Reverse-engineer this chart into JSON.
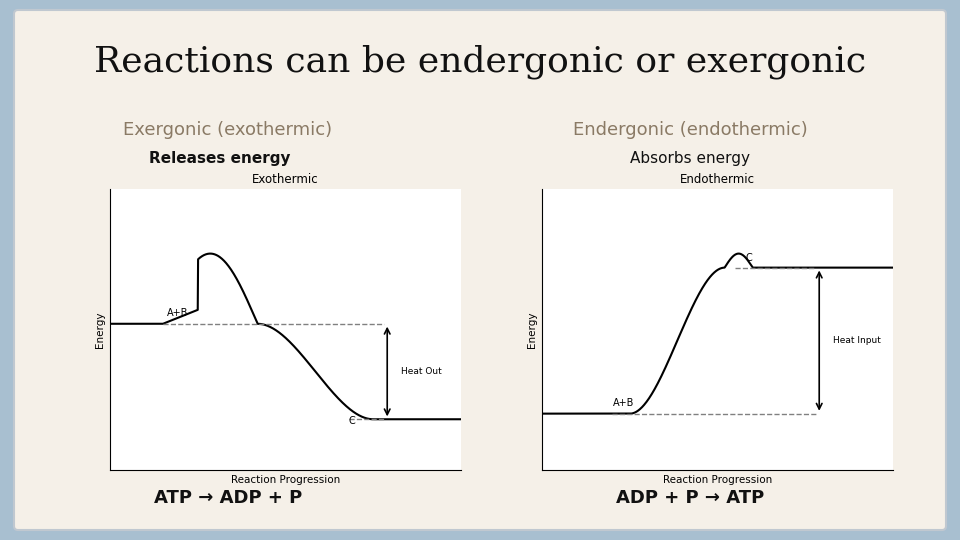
{
  "title": "Reactions can be endergonic or exergonic",
  "title_fontsize": 26,
  "bg_outer": "#a8bfd0",
  "bg_inner": "#f5f0e8",
  "left_label": "Exergonic (exothermic)",
  "right_label": "Endergonic (endothermic)",
  "left_sublabel": "Releases energy",
  "right_sublabel": "Absorbs energy",
  "left_chart_title": "Exothermic",
  "right_chart_title": "Endothermic",
  "left_bottom_label": "ATP → ADP + P",
  "right_bottom_label": "ADP + P → ATP",
  "label_color": "#8a7a65",
  "sublabel_left_bold": true,
  "sublabel_right_bold": false,
  "bottom_label_color": "#111111",
  "chart_bg": "#ffffff",
  "reaction_progression": "Reaction Progression",
  "energy_label": "Energy"
}
